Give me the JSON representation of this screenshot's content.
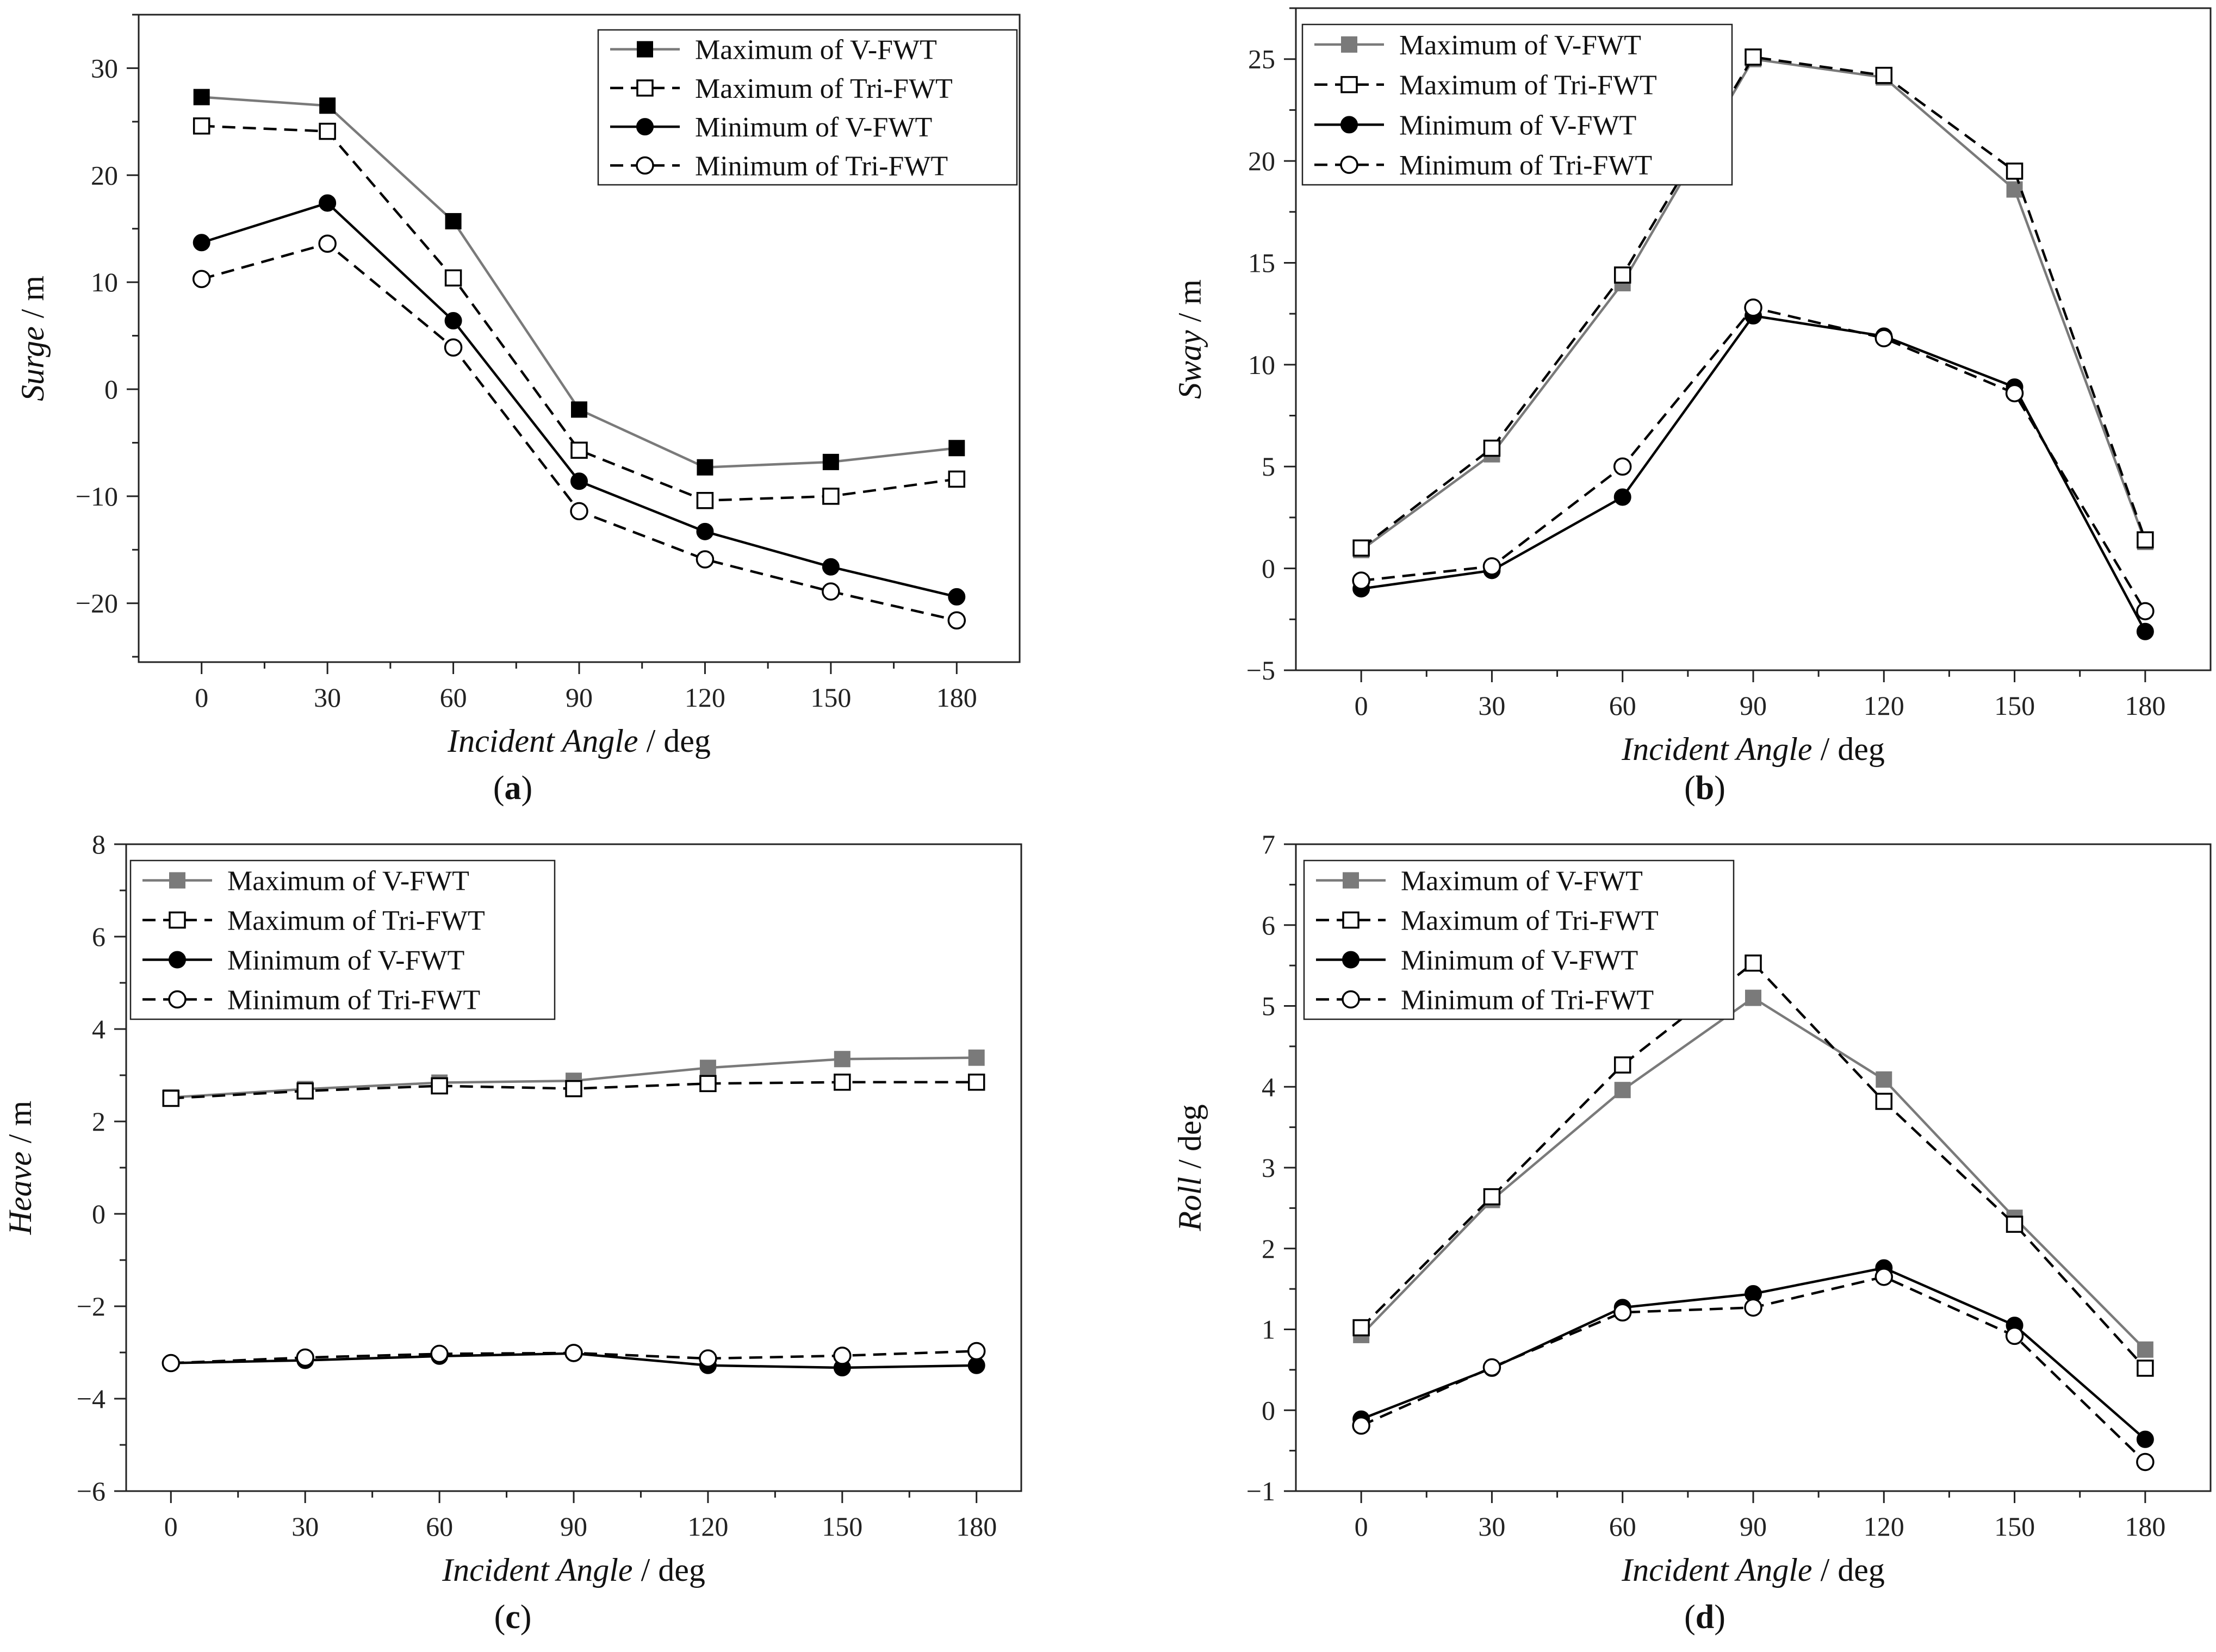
{
  "chart_data": [
    {
      "id": "a",
      "type": "line",
      "caption": "a",
      "xlabel_italic": "Incident Angle",
      "xlabel_unit": " / deg",
      "ylabel_italic": "Surge",
      "ylabel_unit": " / m",
      "x": [
        0,
        30,
        60,
        90,
        120,
        150,
        180
      ],
      "xticks": [
        "0",
        "30",
        "60",
        "90",
        "120",
        "150",
        "180"
      ],
      "xlim": [
        -15,
        195
      ],
      "ylim": [
        -25.5,
        35
      ],
      "yticks": [
        30,
        20,
        10,
        0,
        -10,
        -20
      ],
      "ytick_labels": [
        "30",
        "20",
        "10",
        "0",
        "−10",
        "−20"
      ],
      "legend_position": "top-right",
      "series": [
        {
          "name": "Maximum of V-FWT",
          "values": [
            27.3,
            26.5,
            15.7,
            -1.9,
            -7.3,
            -6.8,
            -5.5
          ],
          "marker": "square-filled",
          "dash": "solid",
          "color": "#7a7a7a",
          "marker_color": "#000000"
        },
        {
          "name": "Maximum of Tri-FWT",
          "values": [
            24.6,
            24.1,
            10.4,
            -5.7,
            -10.4,
            -10.0,
            -8.4
          ],
          "marker": "square-open",
          "dash": "dashed",
          "color": "#000000",
          "marker_color": "#000000"
        },
        {
          "name": "Minimum of V-FWT",
          "values": [
            13.7,
            17.4,
            6.4,
            -8.6,
            -13.3,
            -16.6,
            -19.4
          ],
          "marker": "circle-filled",
          "dash": "solid",
          "color": "#000000",
          "marker_color": "#000000"
        },
        {
          "name": "Minimum of Tri-FWT",
          "values": [
            10.3,
            13.6,
            3.9,
            -11.4,
            -15.9,
            -18.9,
            -21.6
          ],
          "marker": "circle-open",
          "dash": "dashed",
          "color": "#000000",
          "marker_color": "#000000"
        }
      ]
    },
    {
      "id": "b",
      "type": "line",
      "caption": "b",
      "xlabel_italic": "Incident Angle",
      "xlabel_unit": " / deg",
      "ylabel_italic": "Sway",
      "ylabel_unit": " / m",
      "x": [
        0,
        30,
        60,
        90,
        120,
        150,
        180
      ],
      "xticks": [
        "0",
        "30",
        "60",
        "90",
        "120",
        "150",
        "180"
      ],
      "xlim": [
        -15,
        195
      ],
      "ylim": [
        -5,
        27.5
      ],
      "yticks": [
        25,
        20,
        15,
        10,
        5,
        0,
        -5
      ],
      "ytick_labels": [
        "25",
        "20",
        "15",
        "10",
        "5",
        "0",
        "−5"
      ],
      "legend_position": "top-right",
      "series": [
        {
          "name": "Maximum of V-FWT",
          "values": [
            0.9,
            5.6,
            14.0,
            25.0,
            24.1,
            18.6,
            1.3
          ],
          "marker": "square-filled",
          "dash": "solid",
          "color": "#7a7a7a",
          "marker_color": "#7a7a7a"
        },
        {
          "name": "Maximum of Tri-FWT",
          "values": [
            1.0,
            5.9,
            14.4,
            25.1,
            24.2,
            19.5,
            1.4
          ],
          "marker": "square-open",
          "dash": "dashed",
          "color": "#000000",
          "marker_color": "#000000"
        },
        {
          "name": "Minimum of V-FWT",
          "values": [
            -1.0,
            -0.1,
            3.5,
            12.4,
            11.4,
            8.9,
            -3.1
          ],
          "marker": "circle-filled",
          "dash": "solid",
          "color": "#000000",
          "marker_color": "#000000"
        },
        {
          "name": "Minimum of Tri-FWT",
          "values": [
            -0.6,
            0.1,
            5.0,
            12.8,
            11.3,
            8.6,
            -2.1
          ],
          "marker": "circle-open",
          "dash": "dashed",
          "color": "#000000",
          "marker_color": "#000000"
        }
      ]
    },
    {
      "id": "c",
      "type": "line",
      "caption": "c",
      "xlabel_italic": "Incident Angle",
      "xlabel_unit": " / deg",
      "ylabel_italic": "Heave",
      "ylabel_unit": " / m",
      "x": [
        0,
        30,
        60,
        90,
        120,
        150,
        180
      ],
      "xticks": [
        "0",
        "30",
        "60",
        "90",
        "120",
        "150",
        "180"
      ],
      "xlim": [
        -10,
        190
      ],
      "ylim": [
        -6,
        8
      ],
      "yticks": [
        8,
        6,
        4,
        2,
        0,
        -2,
        -4,
        -6
      ],
      "ytick_labels": [
        "8",
        "6",
        "4",
        "2",
        "0",
        "−2",
        "−4",
        "−6"
      ],
      "legend_position": "top-left",
      "series": [
        {
          "name": "Maximum of V-FWT",
          "values": [
            2.52,
            2.7,
            2.84,
            2.88,
            3.16,
            3.35,
            3.38
          ],
          "marker": "square-filled",
          "dash": "solid",
          "color": "#7a7a7a",
          "marker_color": "#7a7a7a"
        },
        {
          "name": "Maximum of Tri-FWT",
          "values": [
            2.5,
            2.66,
            2.77,
            2.71,
            2.82,
            2.85,
            2.85
          ],
          "marker": "square-open",
          "dash": "dashed",
          "color": "#000000",
          "marker_color": "#000000"
        },
        {
          "name": "Minimum of V-FWT",
          "values": [
            -3.23,
            -3.17,
            -3.08,
            -3.02,
            -3.28,
            -3.33,
            -3.28
          ],
          "marker": "circle-filled",
          "dash": "solid",
          "color": "#000000",
          "marker_color": "#000000"
        },
        {
          "name": "Minimum of Tri-FWT",
          "values": [
            -3.23,
            -3.11,
            -3.03,
            -3.01,
            -3.13,
            -3.07,
            -2.97
          ],
          "marker": "circle-open",
          "dash": "dashed",
          "color": "#000000",
          "marker_color": "#000000"
        }
      ]
    },
    {
      "id": "d",
      "type": "line",
      "caption": "d",
      "xlabel_italic": "Incident Angle",
      "xlabel_unit": " / deg",
      "ylabel_italic": "Roll",
      "ylabel_unit": " / deg",
      "x": [
        0,
        30,
        60,
        90,
        120,
        150,
        180
      ],
      "xticks": [
        "0",
        "30",
        "60",
        "90",
        "120",
        "150",
        "180"
      ],
      "xlim": [
        -15,
        195
      ],
      "ylim": [
        -1,
        7
      ],
      "yticks": [
        7,
        6,
        5,
        4,
        3,
        2,
        1,
        0,
        -1
      ],
      "ytick_labels": [
        "7",
        "6",
        "5",
        "4",
        "3",
        "2",
        "1",
        "0",
        "−1"
      ],
      "legend_position": "top-left",
      "series": [
        {
          "name": "Maximum of V-FWT",
          "values": [
            0.93,
            2.6,
            3.96,
            5.1,
            4.09,
            2.38,
            0.75
          ],
          "marker": "square-filled",
          "dash": "solid",
          "color": "#7a7a7a",
          "marker_color": "#7a7a7a"
        },
        {
          "name": "Maximum of Tri-FWT",
          "values": [
            1.02,
            2.64,
            4.27,
            5.53,
            3.82,
            2.3,
            0.52
          ],
          "marker": "square-open",
          "dash": "dashed",
          "color": "#000000",
          "marker_color": "#000000"
        },
        {
          "name": "Minimum of V-FWT",
          "values": [
            -0.11,
            0.52,
            1.27,
            1.44,
            1.76,
            1.05,
            -0.36
          ],
          "marker": "circle-filled",
          "dash": "solid",
          "color": "#000000",
          "marker_color": "#000000"
        },
        {
          "name": "Minimum of Tri-FWT",
          "values": [
            -0.19,
            0.53,
            1.21,
            1.27,
            1.65,
            0.92,
            -0.64
          ],
          "marker": "circle-open",
          "dash": "dashed",
          "color": "#000000",
          "marker_color": "#000000"
        }
      ]
    }
  ]
}
